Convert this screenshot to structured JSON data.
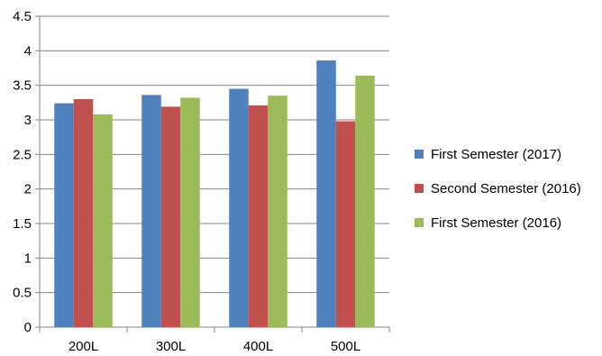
{
  "chart_data": {
    "type": "bar",
    "categories": [
      "200L",
      "300L",
      "400L",
      "500L"
    ],
    "series": [
      {
        "name": "First Semester (2017)",
        "color": "#4F81BD",
        "values": [
          3.24,
          3.36,
          3.45,
          3.86
        ]
      },
      {
        "name": "Second Semester (2016)",
        "color": "#C0504D",
        "values": [
          3.3,
          3.19,
          3.21,
          2.98
        ]
      },
      {
        "name": "First Semester (2016)",
        "color": "#9BBB59",
        "values": [
          3.08,
          3.32,
          3.35,
          3.64
        ]
      }
    ],
    "ylim": [
      0,
      4.5
    ],
    "yticks": [
      "0",
      "0.5",
      "1",
      "1.5",
      "2",
      "2.5",
      "3",
      "3.5",
      "4",
      "4.5"
    ],
    "grid": true,
    "legend_position": "right",
    "title": "",
    "xlabel": "",
    "ylabel": ""
  }
}
